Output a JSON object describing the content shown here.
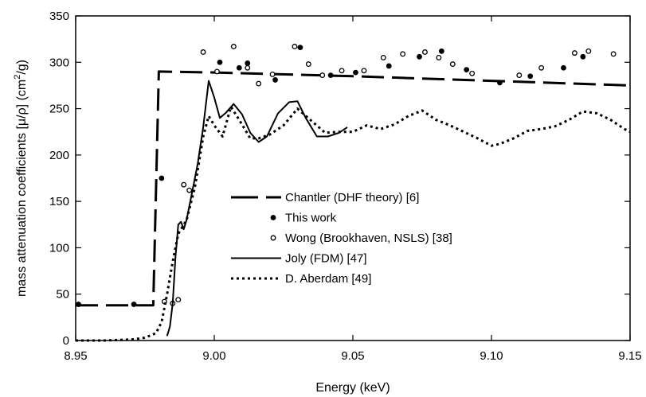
{
  "chart_data": {
    "type": "line",
    "xlabel": "Energy (keV)",
    "ylabel": "mass attenuation coefficients [μ/ρ] (cm²/g)",
    "ylabel_parts": {
      "main": "mass attenuation coefficients [μ/ρ] (cm",
      "sup": "2",
      "tail": "/g)"
    },
    "xlim": [
      8.95,
      9.15
    ],
    "ylim": [
      0,
      350
    ],
    "x_ticks": [
      8.95,
      9.0,
      9.05,
      9.1,
      9.15
    ],
    "x_tick_labels": [
      "8.95",
      "9.00",
      "9.05",
      "9.10",
      "9.15"
    ],
    "y_ticks": [
      0,
      50,
      100,
      150,
      200,
      250,
      300,
      350
    ],
    "y_tick_labels": [
      "0",
      "50",
      "100",
      "150",
      "200",
      "250",
      "300",
      "350"
    ],
    "grid": false,
    "legend_position": "center-right",
    "series": [
      {
        "name": "Chantler (DHF theory) [6]",
        "style": "long-dash",
        "x": [
          8.95,
          8.977,
          8.978,
          8.98,
          9.0,
          9.05,
          9.1,
          9.15
        ],
        "y": [
          38,
          38,
          38,
          290,
          289,
          285,
          280,
          275
        ]
      },
      {
        "name": "This work",
        "style": "filled-circle",
        "x": [
          8.951,
          8.971,
          8.981,
          9.002,
          9.009,
          9.012,
          9.022,
          9.031,
          9.042,
          9.051,
          9.063,
          9.074,
          9.082,
          9.091,
          9.103,
          9.114,
          9.126,
          9.133
        ],
        "y": [
          39,
          39,
          175,
          300,
          294,
          299,
          281,
          316,
          286,
          289,
          296,
          306,
          312,
          292,
          278,
          285,
          294,
          306
        ]
      },
      {
        "name": "Wong (Brookhaven, NSLS) [38]",
        "style": "open-circle",
        "x": [
          8.982,
          8.985,
          8.987,
          8.989,
          8.991,
          8.996,
          9.001,
          9.007,
          9.012,
          9.016,
          9.021,
          9.029,
          9.034,
          9.039,
          9.046,
          9.054,
          9.061,
          9.068,
          9.076,
          9.081,
          9.086,
          9.093,
          9.11,
          9.118,
          9.13,
          9.135,
          9.144
        ],
        "y": [
          42,
          40,
          44,
          168,
          162,
          311,
          290,
          317,
          294,
          277,
          287,
          317,
          298,
          286,
          291,
          291,
          305,
          309,
          311,
          305,
          298,
          288,
          286,
          294,
          310,
          312,
          309
        ]
      },
      {
        "name": "Joly (FDM) [47]",
        "style": "solid",
        "x": [
          8.983,
          8.984,
          8.985,
          8.986,
          8.987,
          8.988,
          8.989,
          8.99,
          8.992,
          8.994,
          8.996,
          8.998,
          9.0,
          9.002,
          9.004,
          9.007,
          9.01,
          9.013,
          9.016,
          9.019,
          9.023,
          9.027,
          9.03,
          9.033,
          9.037,
          9.041,
          9.045,
          9.048
        ],
        "y": [
          5,
          15,
          40,
          90,
          125,
          128,
          120,
          130,
          160,
          190,
          230,
          280,
          262,
          240,
          245,
          255,
          244,
          224,
          214,
          220,
          245,
          257,
          258,
          240,
          220,
          220,
          224,
          230
        ]
      },
      {
        "name": "D. Aberdam [49]",
        "style": "dotted",
        "x": [
          8.95,
          8.96,
          8.97,
          8.975,
          8.979,
          8.981,
          8.983,
          8.985,
          8.987,
          8.99,
          8.993,
          8.996,
          8.998,
          9.0,
          9.003,
          9.006,
          9.009,
          9.013,
          9.016,
          9.02,
          9.025,
          9.03,
          9.035,
          9.04,
          9.045,
          9.05,
          9.055,
          9.06,
          9.065,
          9.07,
          9.075,
          9.08,
          9.085,
          9.09,
          9.095,
          9.1,
          9.103,
          9.108,
          9.113,
          9.118,
          9.123,
          9.128,
          9.133,
          9.138,
          9.143,
          9.148,
          9.15
        ],
        "y": [
          0,
          0,
          1,
          3,
          8,
          20,
          50,
          85,
          115,
          130,
          165,
          220,
          242,
          232,
          220,
          252,
          238,
          218,
          218,
          222,
          232,
          250,
          237,
          224,
          225,
          225,
          232,
          228,
          233,
          242,
          248,
          238,
          232,
          225,
          218,
          210,
          212,
          218,
          226,
          228,
          231,
          238,
          247,
          245,
          238,
          228,
          225
        ]
      }
    ]
  }
}
